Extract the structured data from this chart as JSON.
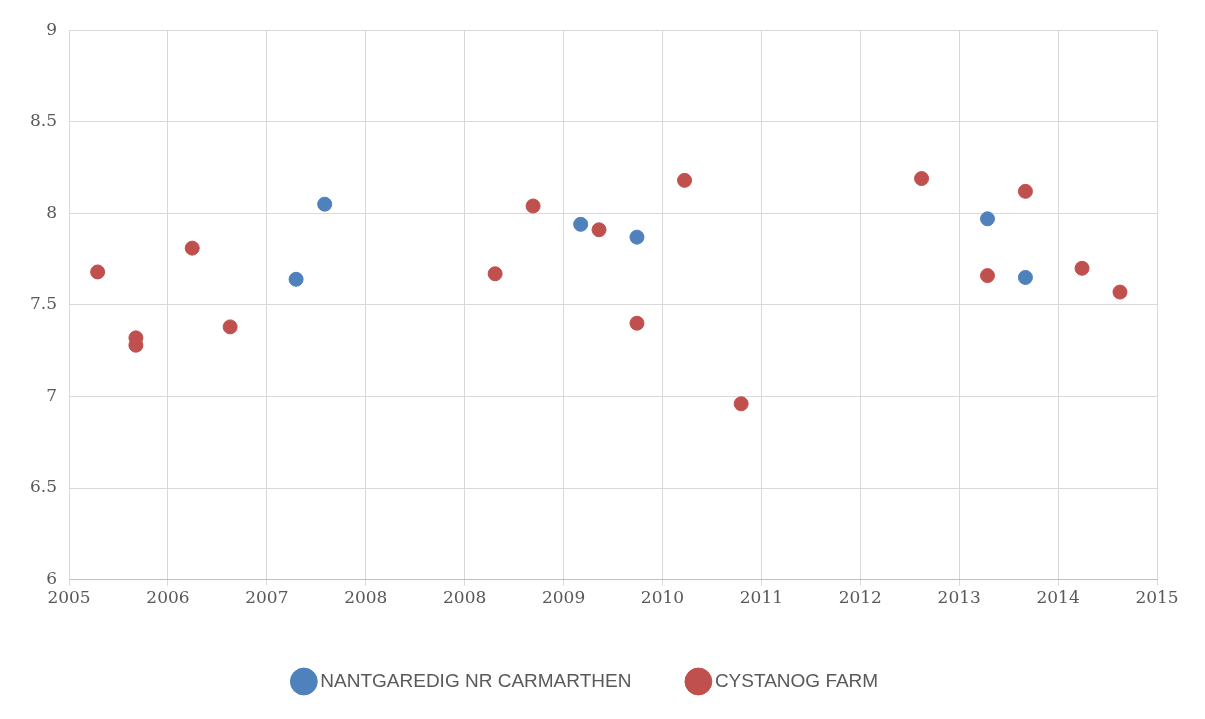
{
  "chart_data": {
    "type": "scatter",
    "legend": "bottom",
    "grid": true,
    "marker": "circle",
    "xlim": [
      "2005-07-01",
      "2015-01-28"
    ],
    "xticks": [
      {
        "value": "2005-07-01",
        "label": "2005"
      },
      {
        "value": "2006-05-15",
        "label": "2006"
      },
      {
        "value": "2007-03-29",
        "label": "2007"
      },
      {
        "value": "2008-02-10",
        "label": "2008"
      },
      {
        "value": "2008-12-24",
        "label": "2008"
      },
      {
        "value": "2009-11-07",
        "label": "2009"
      },
      {
        "value": "2010-09-21",
        "label": "2010"
      },
      {
        "value": "2011-08-05",
        "label": "2011"
      },
      {
        "value": "2012-06-18",
        "label": "2012"
      },
      {
        "value": "2013-05-02",
        "label": "2013"
      },
      {
        "value": "2014-03-16",
        "label": "2014"
      },
      {
        "value": "2015-01-28",
        "label": "2015"
      }
    ],
    "ylim": [
      6,
      9
    ],
    "yticks": [
      6,
      6.5,
      7,
      7.5,
      8,
      8.5,
      9
    ],
    "series": [
      {
        "name": "NANTGAREDIG NR CARMARTHEN",
        "color": "#4f81bd",
        "x": [
          "2007-07",
          "2007-10",
          "2010-01",
          "2010-07",
          "2013-08",
          "2013-12"
        ],
        "values": [
          7.64,
          8.05,
          7.94,
          7.87,
          7.97,
          7.65
        ]
      },
      {
        "name": "CYSTANOG FARM",
        "color": "#c0504d",
        "x": [
          "2005-10",
          "2006-02",
          "2006-02",
          "2006-08",
          "2006-12",
          "2009-04",
          "2009-08",
          "2010-03",
          "2010-07",
          "2010-12",
          "2011-06",
          "2013-01",
          "2013-08",
          "2013-12",
          "2014-06",
          "2014-10"
        ],
        "values": [
          7.68,
          7.32,
          7.28,
          7.81,
          7.38,
          7.67,
          8.04,
          7.91,
          7.4,
          8.18,
          6.96,
          8.19,
          7.66,
          8.12,
          7.7,
          7.57
        ]
      }
    ]
  }
}
